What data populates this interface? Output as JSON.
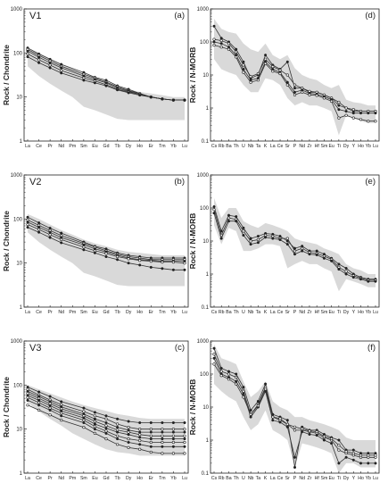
{
  "colors": {
    "field": "#d9d9d9",
    "line": "#333333",
    "frame": "#222222"
  },
  "chart_data": [
    {
      "type": "line",
      "panel": "(a)",
      "label": "V1",
      "ylabel": "Rock / Chondrite",
      "log_scale": true,
      "ylim": [
        1,
        1000
      ],
      "yticks": [
        "1",
        "10",
        "100",
        "1000"
      ],
      "categories": [
        "La",
        "Ce",
        "Pr",
        "Nd",
        "Pm",
        "Sm",
        "Eu",
        "Gd",
        "Tb",
        "Dy",
        "Ho",
        "Er",
        "Tm",
        "Yb",
        "Lu"
      ],
      "field_upper": [
        130,
        100,
        75,
        56,
        44,
        33,
        27,
        22,
        18,
        15,
        13,
        12,
        11,
        10,
        10
      ],
      "field_lower": [
        50,
        30,
        20,
        14,
        10,
        6,
        5,
        4,
        3.2,
        3,
        3,
        3,
        3,
        3,
        3
      ],
      "series": [
        {
          "values": [
            130,
            95,
            72,
            55,
            null,
            36,
            28,
            24,
            18,
            15,
            12,
            10,
            9,
            8.5,
            8.5
          ]
        },
        {
          "values": [
            120,
            88,
            66,
            50,
            null,
            33,
            27,
            22,
            17,
            14,
            12,
            10,
            9,
            8.5,
            8.5
          ]
        },
        {
          "values": [
            110,
            80,
            60,
            46,
            null,
            30,
            25,
            21,
            16,
            13.5,
            11.5,
            10,
            9,
            8.5,
            8.5
          ]
        },
        {
          "values": [
            95,
            70,
            53,
            40,
            null,
            27,
            23,
            19,
            15,
            13,
            11.5,
            10,
            9,
            8.5,
            8.5
          ]
        },
        {
          "values": [
            82,
            60,
            46,
            35,
            null,
            24,
            21,
            18,
            14.5,
            12.5,
            11,
            10,
            9,
            8.5,
            8.5
          ]
        }
      ]
    },
    {
      "type": "line",
      "panel": "(d)",
      "ylabel": "Rock / N-MORB",
      "log_scale": true,
      "ylim": [
        0.1,
        1000
      ],
      "yticks": [
        "0.1",
        "1",
        "10",
        "100",
        "1000"
      ],
      "categories": [
        "Cs",
        "Rb",
        "Ba",
        "Th",
        "U",
        "Nb",
        "Ta",
        "K",
        "La",
        "Ce",
        "Sr",
        "P",
        "Nd",
        "Zr",
        "Hf",
        "Sm",
        "Eu",
        "Ti",
        "Dy",
        "Y",
        "Ho",
        "Yb",
        "Lu"
      ],
      "field_upper": [
        500,
        250,
        200,
        180,
        90,
        60,
        50,
        90,
        40,
        30,
        40,
        16,
        10,
        8,
        7,
        5,
        4,
        5,
        1.8,
        1.5,
        1.4,
        1.2,
        1.2
      ],
      "field_lower": [
        30,
        15,
        12,
        10,
        5,
        3,
        3,
        8,
        7,
        5,
        2,
        1.2,
        1.5,
        1.2,
        1.2,
        1,
        0.8,
        0.15,
        0.6,
        0.5,
        0.4,
        0.35,
        0.35
      ],
      "series": [
        {
          "values": [
            300,
            130,
            100,
            60,
            25,
            8,
            10,
            40,
            20,
            15,
            25,
            4,
            4,
            3,
            3,
            2.5,
            2,
            1.2,
            1,
            0.8,
            0.8,
            0.8,
            0.8
          ]
        },
        {
          "values": [
            120,
            110,
            90,
            50,
            20,
            9,
            11,
            30,
            18,
            14,
            10,
            5,
            4,
            3.2,
            3,
            2.5,
            2,
            1.5,
            1,
            0.9,
            0.8,
            0.8,
            0.8
          ]
        },
        {
          "values": [
            100,
            90,
            70,
            40,
            15,
            7,
            8,
            25,
            15,
            12,
            6,
            3,
            3.5,
            2.8,
            2.6,
            2.2,
            1.8,
            0.9,
            0.8,
            0.7,
            0.7,
            0.7,
            0.7
          ]
        },
        {
          "values": [
            80,
            70,
            60,
            35,
            12,
            6,
            7,
            22,
            13,
            11,
            5,
            2.5,
            3,
            2.5,
            2.4,
            2,
            1.6,
            0.5,
            0.6,
            0.5,
            0.45,
            0.4,
            0.4
          ]
        }
      ]
    },
    {
      "type": "line",
      "panel": "(b)",
      "label": "V2",
      "ylabel": "Rock / Chondrite",
      "log_scale": true,
      "ylim": [
        1,
        1000
      ],
      "yticks": [
        "1",
        "10",
        "100",
        "1000"
      ],
      "categories": [
        "La",
        "Ce",
        "Pr",
        "Nd",
        "Pm",
        "Sm",
        "Eu",
        "Gd",
        "Tb",
        "Dy",
        "Ho",
        "Er",
        "Tm",
        "Yb",
        "Lu"
      ],
      "field_upper": [
        130,
        100,
        75,
        56,
        44,
        34,
        28,
        24,
        20,
        18,
        17,
        16,
        15,
        15,
        15
      ],
      "field_lower": [
        50,
        30,
        20,
        14,
        10,
        6,
        5,
        4,
        3.2,
        3,
        3,
        3,
        3,
        3,
        3
      ],
      "series": [
        {
          "values": [
            110,
            82,
            62,
            48,
            null,
            30,
            24,
            21,
            17,
            15,
            14,
            13,
            13,
            13,
            13
          ]
        },
        {
          "values": [
            95,
            72,
            55,
            42,
            null,
            28,
            23,
            19,
            16,
            14,
            13,
            12,
            12,
            12,
            12
          ]
        },
        {
          "values": [
            85,
            65,
            50,
            38,
            null,
            26,
            21,
            18,
            15,
            13,
            12,
            11.5,
            11,
            11,
            11
          ]
        },
        {
          "values": [
            75,
            58,
            44,
            34,
            null,
            23,
            19,
            16.5,
            14,
            12.5,
            11.5,
            11,
            10.5,
            10.5,
            10
          ]
        },
        {
          "values": [
            65,
            50,
            38,
            29,
            null,
            20,
            17,
            14,
            12,
            10,
            9,
            8,
            7.5,
            7,
            7
          ]
        }
      ]
    },
    {
      "type": "line",
      "panel": "(e)",
      "ylabel": "Rock / N-MORB",
      "log_scale": true,
      "ylim": [
        0.1,
        1000
      ],
      "yticks": [
        "0.1",
        "1",
        "10",
        "100",
        "1000"
      ],
      "categories": [
        "Cs",
        "Rb",
        "Ba",
        "Th",
        "U",
        "Nb",
        "Ta",
        "K",
        "La",
        "Ce",
        "Sr",
        "P",
        "Nd",
        "Zr",
        "Hf",
        "Sm",
        "Eu",
        "Ti",
        "Dy",
        "Y",
        "Ho",
        "Yb",
        "Lu"
      ],
      "field_upper": [
        200,
        50,
        100,
        100,
        40,
        30,
        25,
        35,
        30,
        25,
        20,
        12,
        10,
        9,
        8,
        6,
        5,
        4,
        2,
        1.5,
        1.3,
        1,
        1
      ],
      "field_lower": [
        30,
        8,
        25,
        20,
        5,
        5,
        6,
        8,
        8,
        7,
        1.5,
        2,
        2.5,
        2,
        2,
        1.5,
        1.2,
        0.3,
        0.7,
        0.6,
        0.5,
        0.4,
        0.4
      ],
      "series": [
        {
          "values": [
            110,
            20,
            60,
            55,
            25,
            12,
            14,
            17,
            16,
            14,
            10,
            6,
            7,
            5,
            5,
            4,
            3,
            2,
            1.5,
            1,
            0.8,
            0.7,
            0.7
          ]
        },
        {
          "values": [
            90,
            15,
            50,
            45,
            20,
            10,
            11,
            15,
            14,
            12,
            12,
            5,
            6,
            4.5,
            4.2,
            3.5,
            2.8,
            1.6,
            1.2,
            0.9,
            0.75,
            0.65,
            0.65
          ]
        },
        {
          "values": [
            70,
            12,
            40,
            40,
            15,
            8,
            9,
            13,
            12,
            11,
            8,
            4,
            5,
            4,
            3.8,
            3,
            2.5,
            1.4,
            1,
            0.8,
            0.7,
            0.6,
            0.6
          ]
        }
      ]
    },
    {
      "type": "line",
      "panel": "(c)",
      "label": "V3",
      "ylabel": "Rock / Chondrite",
      "log_scale": true,
      "ylim": [
        1,
        1000
      ],
      "yticks": [
        "1",
        "10",
        "100",
        "1000"
      ],
      "categories": [
        "La",
        "Ce",
        "Pr",
        "Nd",
        "Pm",
        "Sm",
        "Eu",
        "Gd",
        "Tb",
        "Dy",
        "Ho",
        "Er",
        "Tm",
        "Yb",
        "Lu"
      ],
      "field_upper": [
        100,
        80,
        65,
        52,
        42,
        35,
        30,
        26,
        22,
        20,
        18,
        17,
        17,
        17,
        17
      ],
      "field_lower": [
        40,
        25,
        17,
        12,
        8,
        6,
        4.5,
        3.5,
        3,
        2.8,
        2.5,
        2.5,
        2.5,
        2.5,
        2.5
      ],
      "series": [
        {
          "values": [
            90,
            70,
            55,
            42,
            null,
            30,
            24,
            20,
            17,
            15,
            14,
            14,
            14,
            14,
            14
          ]
        },
        {
          "values": [
            80,
            60,
            46,
            36,
            null,
            25,
            20,
            17,
            13,
            11,
            10,
            10,
            10,
            10,
            10
          ]
        },
        {
          "values": [
            72,
            55,
            42,
            32,
            null,
            22,
            17,
            14,
            11,
            9.5,
            8.5,
            8.5,
            8.5,
            8.5,
            8.5
          ]
        },
        {
          "values": [
            65,
            50,
            38,
            29,
            null,
            20,
            15,
            12,
            9.5,
            8.5,
            7.5,
            7,
            7,
            7,
            7
          ]
        },
        {
          "values": [
            58,
            45,
            34,
            26,
            null,
            18,
            13,
            10.5,
            8.5,
            7.5,
            6.5,
            6,
            6,
            6,
            6
          ]
        },
        {
          "values": [
            52,
            40,
            30,
            23,
            null,
            16,
            11.5,
            9,
            7,
            6,
            5.5,
            5,
            5,
            5,
            5
          ]
        },
        {
          "values": [
            45,
            35,
            27,
            20,
            null,
            14,
            10,
            8,
            6,
            5,
            4.5,
            4,
            4,
            4,
            4
          ]
        },
        {
          "values": [
            35,
            27,
            21,
            16,
            null,
            11,
            8,
            6,
            4.5,
            3.8,
            3.5,
            3,
            2.8,
            2.8,
            2.8
          ]
        }
      ]
    },
    {
      "type": "line",
      "panel": "(f)",
      "ylabel": "Rock / N-MORB",
      "log_scale": true,
      "ylim": [
        0.1,
        1000
      ],
      "yticks": [
        "0.1",
        "1",
        "10",
        "100",
        "1000"
      ],
      "categories": [
        "Cs",
        "Rb",
        "Ba",
        "Th",
        "U",
        "Nb",
        "Ta",
        "K",
        "La",
        "Ce",
        "Sr",
        "P",
        "Nd",
        "Zr",
        "Hf",
        "Sm",
        "Eu",
        "Ti",
        "Dy",
        "Y",
        "Ho",
        "Yb",
        "Lu"
      ],
      "field_upper": [
        800,
        300,
        250,
        200,
        60,
        20,
        30,
        60,
        15,
        10,
        8,
        5,
        5,
        4,
        3.5,
        3,
        2.5,
        2,
        1.2,
        1,
        1,
        1,
        1
      ],
      "field_lower": [
        50,
        30,
        20,
        15,
        5,
        2,
        3,
        8,
        2,
        1.5,
        1,
        0.15,
        0.8,
        0.7,
        0.6,
        0.5,
        0.4,
        0.1,
        0.2,
        0.2,
        0.15,
        0.15,
        0.15
      ],
      "series": [
        {
          "values": [
            600,
            150,
            120,
            100,
            40,
            8,
            15,
            50,
            6,
            5,
            4,
            0.15,
            2.5,
            2,
            2,
            1.5,
            1.2,
            1,
            0.5,
            0.5,
            0.4,
            0.4,
            0.4
          ]
        },
        {
          "values": [
            400,
            120,
            100,
            80,
            30,
            6,
            12,
            40,
            5,
            4,
            3,
            2,
            2,
            1.8,
            1.6,
            1.2,
            1,
            0.5,
            0.4,
            0.35,
            0.3,
            0.3,
            0.3
          ]
        },
        {
          "values": [
            300,
            100,
            80,
            60,
            25,
            5,
            10,
            30,
            4,
            3.5,
            2.5,
            0.3,
            1.8,
            1.5,
            1.4,
            1,
            0.8,
            0.2,
            0.3,
            0.25,
            0.2,
            0.2,
            0.2
          ]
        },
        {
          "values": [
            200,
            90,
            70,
            50,
            20,
            6,
            11,
            35,
            5,
            4.5,
            3,
            2.5,
            2.2,
            1.9,
            1.8,
            1.3,
            1.1,
            0.7,
            0.45,
            0.4,
            0.35,
            0.35,
            0.35
          ]
        }
      ]
    }
  ]
}
